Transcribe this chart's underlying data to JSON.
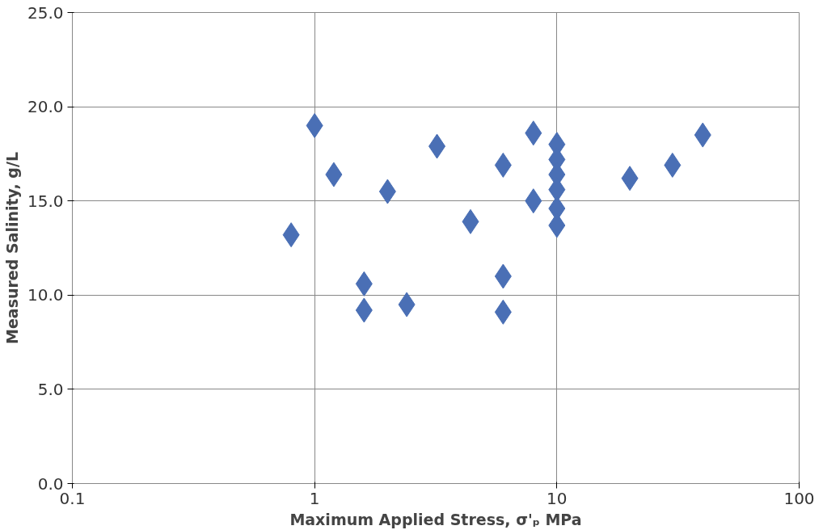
{
  "chart_data": {
    "type": "scatter",
    "xlabel": "Maximum Applied Stress, σ'ₚ MPa",
    "ylabel": "Measured Salinity, g/L",
    "log": "x",
    "x": [
      0.8,
      1.0,
      1.2,
      1.6,
      1.6,
      2.0,
      2.4,
      3.2,
      4.4,
      6.0,
      6.0,
      6.0,
      8.0,
      8.0,
      10,
      10,
      10,
      10,
      10,
      10,
      20,
      30,
      40
    ],
    "series": [
      {
        "color": "#4a6fb5",
        "values": [
          13.2,
          19.0,
          16.4,
          10.6,
          9.2,
          15.5,
          9.5,
          17.9,
          13.9,
          16.9,
          11.0,
          9.1,
          18.6,
          15.0,
          18.0,
          17.2,
          16.4,
          15.6,
          14.6,
          13.7,
          16.2,
          16.9,
          18.5
        ]
      }
    ],
    "marker": "diamond",
    "grid": true,
    "xlim": [
      0.1,
      100
    ],
    "ylim": [
      0,
      25
    ],
    "xticks": [
      0.1,
      1,
      10,
      100
    ],
    "yticks": [
      {
        "value": 0,
        "label": "0.0"
      },
      {
        "value": 5,
        "label": "5.0"
      },
      {
        "value": 10,
        "label": "10.0"
      },
      {
        "value": 15,
        "label": "15.0"
      },
      {
        "value": 20,
        "label": "20.0"
      },
      {
        "value": 25,
        "label": "25.0"
      }
    ]
  }
}
